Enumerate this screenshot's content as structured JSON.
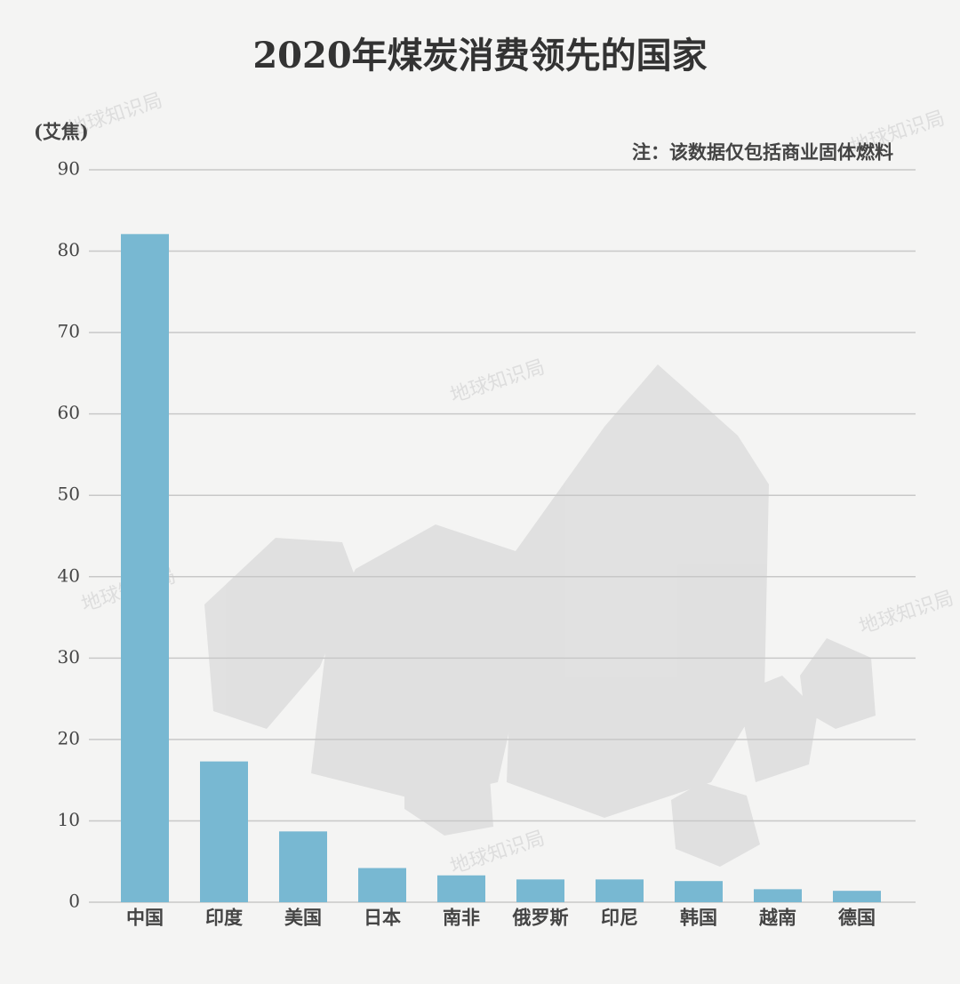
{
  "chart_data": {
    "type": "bar",
    "title": "2020年煤炭消费领先的国家",
    "y_label": "(艾焦)",
    "note": "注：该数据仅包括商业固体燃料",
    "watermark": "地球知识局",
    "categories": [
      "中国",
      "印度",
      "美国",
      "日本",
      "南非",
      "俄罗斯",
      "印尼",
      "韩国",
      "越南",
      "德国"
    ],
    "values": [
      82.1,
      17.3,
      8.7,
      4.2,
      3.3,
      2.8,
      2.8,
      2.6,
      1.6,
      1.4
    ],
    "color": "#78b8d2",
    "ylim": [
      0,
      90
    ],
    "yticks": [
      0,
      10,
      20,
      30,
      40,
      50,
      60,
      70,
      80,
      90
    ],
    "grid": true
  }
}
